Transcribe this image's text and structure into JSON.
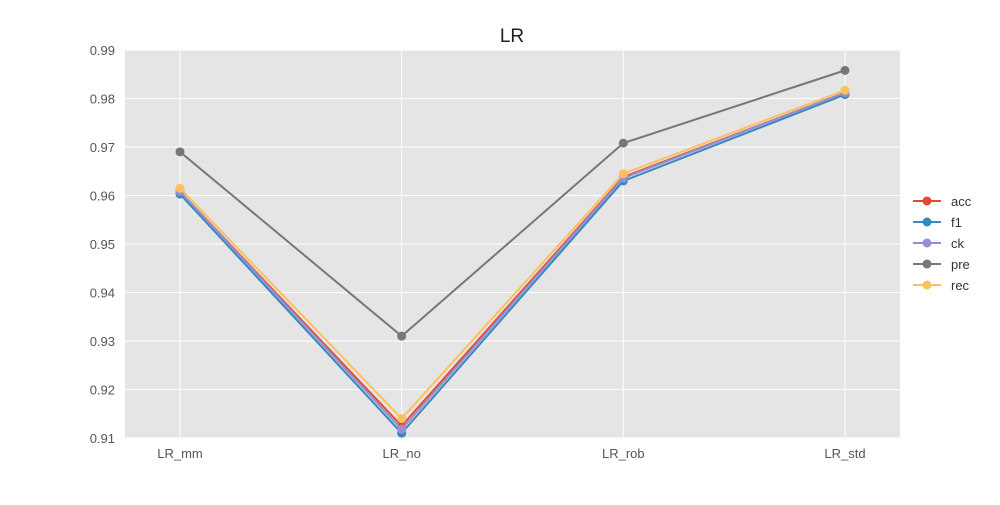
{
  "chart_data": {
    "type": "line",
    "title": "LR",
    "xlabel": "",
    "ylabel": "",
    "categories": [
      "LR_mm",
      "LR_no",
      "LR_rob",
      "LR_std"
    ],
    "ylim": [
      0.91,
      0.99
    ],
    "yticks": [
      "0.91",
      "0.92",
      "0.93",
      "0.94",
      "0.95",
      "0.96",
      "0.97",
      "0.98",
      "0.99"
    ],
    "grid": true,
    "legend_position": "right",
    "background_color": "#e5e5e5",
    "grid_color": "#ffffff",
    "series": [
      {
        "name": "acc",
        "color": "#e24a33",
        "values": [
          0.9608,
          0.9125,
          0.9638,
          0.9812
        ]
      },
      {
        "name": "f1",
        "color": "#348abd",
        "values": [
          0.9603,
          0.911,
          0.963,
          0.9808
        ]
      },
      {
        "name": "ck",
        "color": "#988ed5",
        "values": [
          0.9608,
          0.9118,
          0.9636,
          0.9812
        ]
      },
      {
        "name": "pre",
        "color": "#777777",
        "values": [
          0.969,
          0.931,
          0.9708,
          0.9858
        ]
      },
      {
        "name": "rec",
        "color": "#fbc15e",
        "values": [
          0.9615,
          0.914,
          0.9645,
          0.9817
        ]
      }
    ]
  }
}
